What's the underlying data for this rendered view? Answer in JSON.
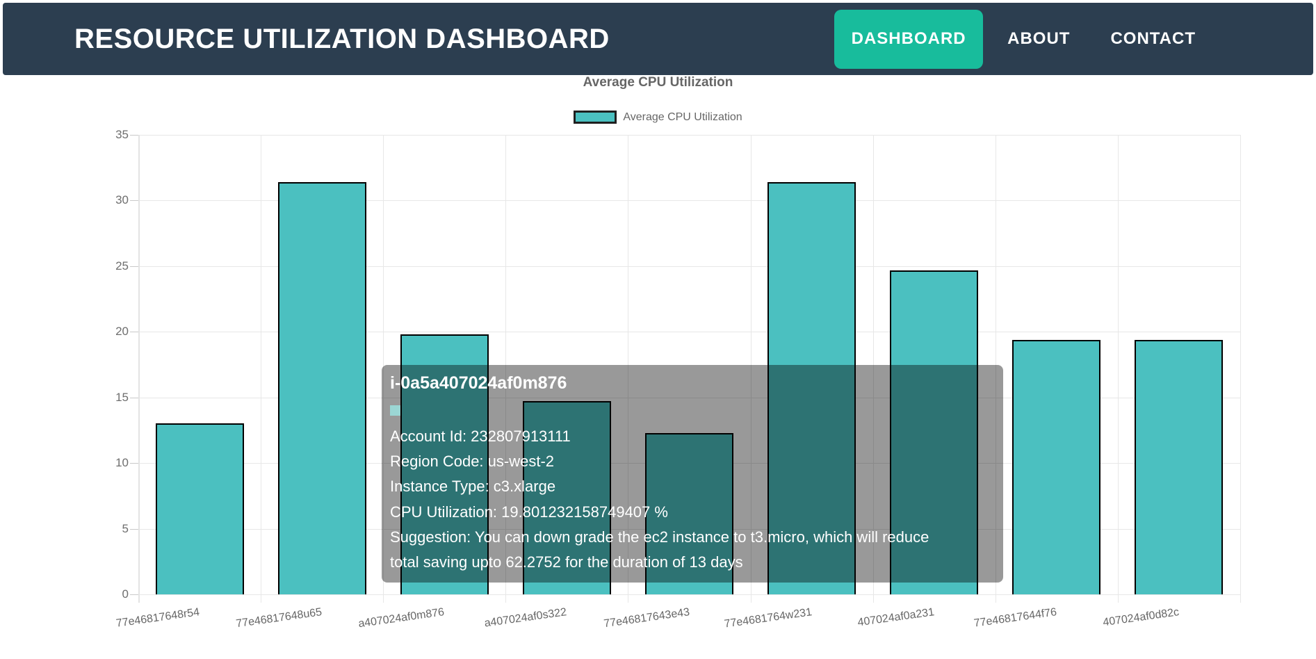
{
  "navbar": {
    "title": "RESOURCE UTILIZATION DASHBOARD",
    "items": [
      {
        "label": "DASHBOARD",
        "active": true
      },
      {
        "label": "ABOUT",
        "active": false
      },
      {
        "label": "CONTACT",
        "active": false
      }
    ]
  },
  "chart_data": {
    "type": "bar",
    "title": "Average CPU Utilization",
    "legend_label": "Average CPU Utilization",
    "legend_position": "top",
    "xlabel": "",
    "ylabel": "",
    "ylim": [
      0,
      35
    ],
    "y_ticks": [
      0,
      5,
      10,
      15,
      20,
      25,
      30,
      35
    ],
    "grid": true,
    "categories": [
      "77e46817648r54",
      "77e46817648u65",
      "a407024af0m876",
      "a407024af0s322",
      "77e46817643e43",
      "77e4681764w231",
      "407024af0a231",
      "77e46817644f76",
      "407024af0d82c"
    ],
    "values": [
      13.0,
      31.4,
      19.8,
      14.7,
      12.3,
      31.4,
      24.7,
      19.4,
      19.4
    ],
    "bar_color": "#4bc0c0",
    "bar_border_color": "#000000"
  },
  "tooltip": {
    "title": "i-0a5a407024af0m876",
    "swatch_color": "#9bd6d4",
    "lines": [
      "Account Id: 232807913111",
      "Region Code: us-west-2",
      "Instance Type: c3.xlarge",
      "CPU Utilization: 19.801232158749407 %",
      "Suggestion: You can down grade the ec2 instance to t3.micro, which will reduce",
      "total saving upto 62.2752 for the duration of 13 days"
    ]
  },
  "colors": {
    "navbar_bg": "#2C3E50",
    "active_nav_bg": "#18BC9C",
    "bar_fill": "#4bc0c0",
    "bar_border": "#000000",
    "grid": "#e7e7e7",
    "axis_text": "#666666",
    "tooltip_bg": "rgba(0,0,0,0.40)"
  }
}
